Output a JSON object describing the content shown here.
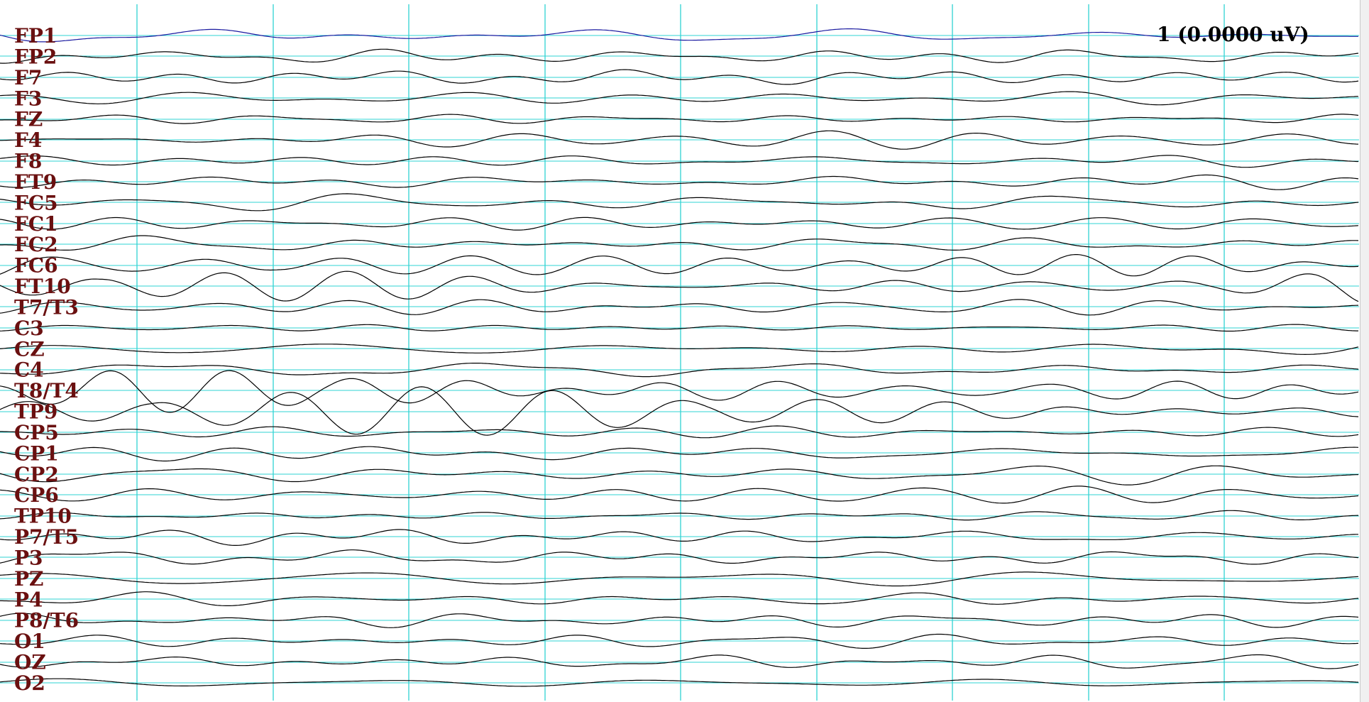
{
  "viewer": {
    "cursor_readout": "1 (0.0000 uV)"
  },
  "colors": {
    "background": "#ffffff",
    "grid": "#2fd3d3",
    "trace": "#000000",
    "first_trace": "#1a1aa0",
    "label": "#6a1010"
  },
  "grid": {
    "vertical_divisions": 10,
    "horizontal_lines_per_channel": 1
  },
  "channels": [
    {
      "label": "FP1"
    },
    {
      "label": "FP2"
    },
    {
      "label": "F7"
    },
    {
      "label": "F3"
    },
    {
      "label": "FZ"
    },
    {
      "label": "F4"
    },
    {
      "label": "F8"
    },
    {
      "label": "FT9"
    },
    {
      "label": "FC5"
    },
    {
      "label": "FC1"
    },
    {
      "label": "FC2"
    },
    {
      "label": "FC6"
    },
    {
      "label": "FT10"
    },
    {
      "label": "T7/T3"
    },
    {
      "label": "C3"
    },
    {
      "label": "CZ"
    },
    {
      "label": "C4"
    },
    {
      "label": "T8/T4"
    },
    {
      "label": "TP9"
    },
    {
      "label": "CP5"
    },
    {
      "label": "CP1"
    },
    {
      "label": "CP2"
    },
    {
      "label": "CP6"
    },
    {
      "label": "TP10"
    },
    {
      "label": "P7/T5"
    },
    {
      "label": "P3"
    },
    {
      "label": "PZ"
    },
    {
      "label": "P4"
    },
    {
      "label": "P8/T6"
    },
    {
      "label": "O1"
    },
    {
      "label": "OZ"
    },
    {
      "label": "O2"
    }
  ],
  "high_amplitude_channels": [
    "FC6",
    "FT10",
    "T8/T4",
    "TP9"
  ]
}
